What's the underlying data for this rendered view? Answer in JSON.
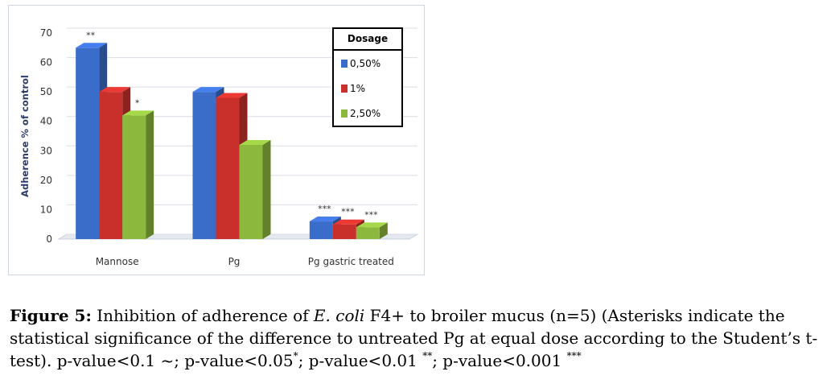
{
  "chart_data": {
    "type": "bar",
    "categories": [
      "Mannose",
      "Pg",
      "Pg gastric treated"
    ],
    "series": [
      {
        "name": "0,50%",
        "values": [
          65,
          50,
          6
        ],
        "annotations": [
          "**",
          "",
          "***"
        ]
      },
      {
        "name": "1%",
        "values": [
          50,
          48,
          5
        ],
        "annotations": [
          "",
          "",
          "***"
        ]
      },
      {
        "name": "2,50%",
        "values": [
          42,
          32,
          4
        ],
        "annotations": [
          "*",
          "",
          "***"
        ]
      }
    ],
    "ylabel": "Adherence % of control",
    "xlabel": "",
    "ylim": [
      0,
      70
    ],
    "yticks": [
      0,
      10,
      20,
      30,
      40,
      50,
      60,
      70
    ],
    "grid": true,
    "legend_title": "Dosage",
    "legend_position": "top-right",
    "colors": [
      "#3a6cc9",
      "#c9302c",
      "#8db83e"
    ],
    "three_d": true
  },
  "caption": {
    "label": "Figure 5:",
    "pre": "Inhibition of adherence of",
    "species": "E. coli",
    "post": "F4+ to broiler mucus (n=5) (Asterisks indicate the statistical significance of the difference to untreated Pg at equal dose according to the Student’s t-test). p-value<0.1 ~; p-value<0.05",
    "sig1": "*",
    "mid1": "; p-value<0.01",
    "sig2": "**",
    "mid2": "; p-value<0.001",
    "sig3": "***"
  }
}
